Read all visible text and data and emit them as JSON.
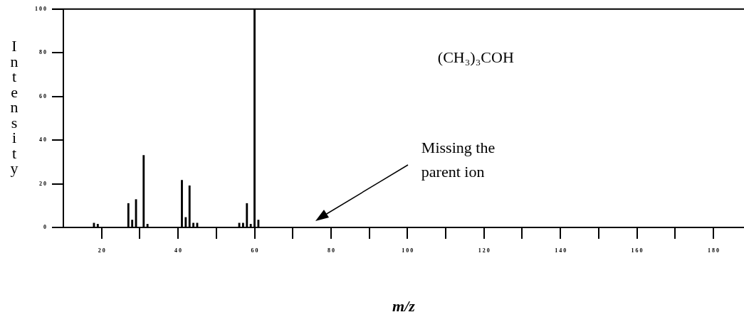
{
  "chart_data": {
    "type": "bar",
    "xlabel": "m/z",
    "ylabel": "Intensity",
    "x": [
      18,
      19,
      27,
      28,
      29,
      31,
      32,
      41,
      42,
      43,
      44,
      45,
      56,
      57,
      58,
      59,
      60,
      61
    ],
    "values": [
      2,
      1.5,
      11,
      3.4,
      12.8,
      33,
      1.5,
      21.6,
      4.6,
      19.1,
      2,
      2,
      2,
      2,
      11,
      1.5,
      100,
      3.4
    ],
    "color": "#000000",
    "xlim": [
      10,
      188
    ],
    "xticks": [
      20,
      {
        "value": 30,
        "label": null
      },
      40,
      {
        "value": 50,
        "label": null
      },
      60,
      {
        "value": 70,
        "label": null
      },
      80,
      {
        "value": 90,
        "label": null
      },
      100,
      {
        "value": 110,
        "label": null
      },
      120,
      {
        "value": 130,
        "label": null
      },
      140,
      {
        "value": 150,
        "label": null
      },
      160,
      {
        "value": 170,
        "label": null
      },
      180
    ],
    "ylim": [
      0,
      100
    ],
    "yticks": [
      0,
      20,
      40,
      60,
      80,
      100
    ],
    "grid": false,
    "legend": false,
    "annotations": [
      "(CH₃)₃COH",
      "Missing the parent ion"
    ]
  }
}
